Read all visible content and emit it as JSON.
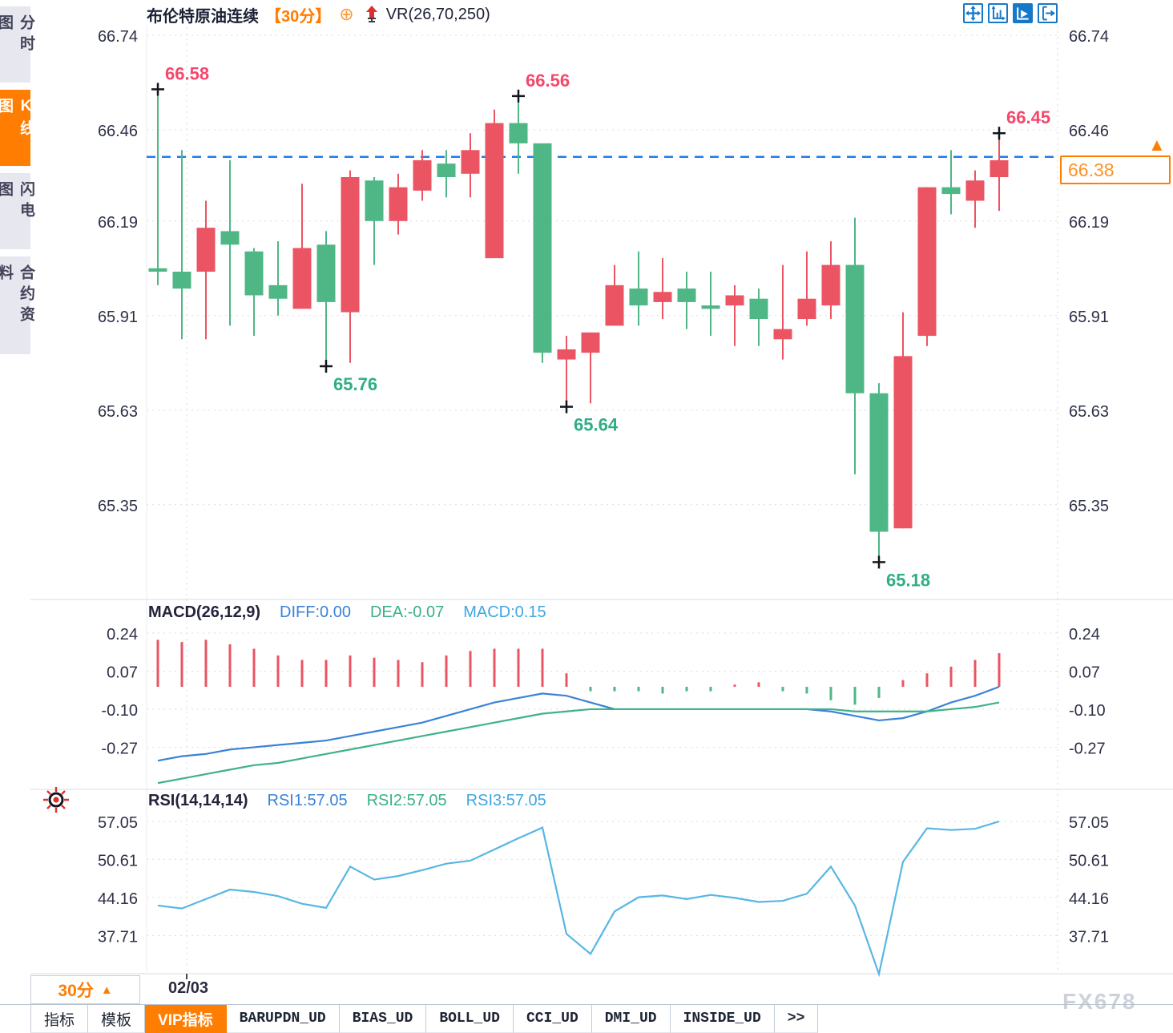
{
  "app": {
    "watermark": "FX678"
  },
  "sidebar": {
    "tabs": [
      {
        "label": "分时图",
        "active": false
      },
      {
        "label": "K线图",
        "active": true
      },
      {
        "label": "闪电图",
        "active": false
      },
      {
        "label": "合约资料",
        "active": false
      }
    ]
  },
  "header": {
    "title": "布伦特原油连续",
    "period": "【30分】",
    "target_icon": "⊕",
    "indicator_label": "VR(26,70,250)",
    "toolbar_icons": [
      "move-cross-icon",
      "axis-range-icon",
      "trend-play-icon",
      "export-right-icon"
    ]
  },
  "price_box": {
    "value": "66.38",
    "marker": "▲"
  },
  "footer": {
    "period_button": {
      "label": "30分",
      "arrow": "▲"
    },
    "date_label": "02/03",
    "tabs": [
      {
        "label": "指标",
        "active": false,
        "mono": false
      },
      {
        "label": "模板",
        "active": false,
        "mono": false
      },
      {
        "label": "VIP指标",
        "active": true,
        "mono": false
      },
      {
        "label": "BARUPDN_UD",
        "active": false,
        "mono": true
      },
      {
        "label": "BIAS_UD",
        "active": false,
        "mono": true
      },
      {
        "label": "BOLL_UD",
        "active": false,
        "mono": true
      },
      {
        "label": "CCI_UD",
        "active": false,
        "mono": true
      },
      {
        "label": "DMI_UD",
        "active": false,
        "mono": true
      },
      {
        "label": "INSIDE_UD",
        "active": false,
        "mono": true
      },
      {
        "label": ">>",
        "active": false,
        "mono": true
      }
    ]
  },
  "colors": {
    "up": "#eb5463",
    "down": "#4fb685",
    "accent": "#ff7d00",
    "price_line_blue": "#1d7dee",
    "diff_line": "#3b82d8",
    "dea_line": "#3fb287",
    "rsi_line": "#57b7e3",
    "annotation_red": "#f5476b",
    "annotation_green": "#2fae85",
    "axis_text": "#2e3148",
    "grid": "#dcdcdc",
    "toolbar_blue": "#1878c8"
  },
  "chart_data": [
    {
      "type": "candlestick",
      "panel": "price",
      "symbol": "布伦特原油连续",
      "interval": "30分",
      "y_axis_labels": [
        66.74,
        66.46,
        66.19,
        65.91,
        65.63,
        65.35
      ],
      "ylim": [
        65.05,
        66.76
      ],
      "price_line": 66.38,
      "current_price": 66.38,
      "candles": [
        [
          66.05,
          66.58,
          66.0,
          66.04
        ],
        [
          66.04,
          66.4,
          65.84,
          65.99
        ],
        [
          66.04,
          66.25,
          65.84,
          66.17
        ],
        [
          66.16,
          66.37,
          65.88,
          66.12
        ],
        [
          66.1,
          66.11,
          65.85,
          65.97
        ],
        [
          66.0,
          66.13,
          65.91,
          65.96
        ],
        [
          65.93,
          66.3,
          65.93,
          66.11
        ],
        [
          66.12,
          66.16,
          65.76,
          65.95
        ],
        [
          65.92,
          66.34,
          65.77,
          66.32
        ],
        [
          66.31,
          66.32,
          66.06,
          66.19
        ],
        [
          66.19,
          66.33,
          66.15,
          66.29
        ],
        [
          66.28,
          66.4,
          66.25,
          66.37
        ],
        [
          66.36,
          66.4,
          66.26,
          66.32
        ],
        [
          66.33,
          66.45,
          66.26,
          66.4
        ],
        [
          66.08,
          66.52,
          66.08,
          66.48
        ],
        [
          66.48,
          66.56,
          66.33,
          66.42
        ],
        [
          66.42,
          66.42,
          65.77,
          65.8
        ],
        [
          65.78,
          65.85,
          65.64,
          65.81
        ],
        [
          65.8,
          65.86,
          65.65,
          65.86
        ],
        [
          65.88,
          66.06,
          65.88,
          66.0
        ],
        [
          65.99,
          66.1,
          65.88,
          65.94
        ],
        [
          65.95,
          66.08,
          65.9,
          65.98
        ],
        [
          65.99,
          66.04,
          65.87,
          65.95
        ],
        [
          65.94,
          66.04,
          65.85,
          65.93
        ],
        [
          65.94,
          66.0,
          65.82,
          65.97
        ],
        [
          65.96,
          65.99,
          65.82,
          65.9
        ],
        [
          65.84,
          66.06,
          65.78,
          65.87
        ],
        [
          65.9,
          66.1,
          65.88,
          65.96
        ],
        [
          65.94,
          66.13,
          65.9,
          66.06
        ],
        [
          66.06,
          66.2,
          65.44,
          65.68
        ],
        [
          65.68,
          65.71,
          65.18,
          65.27
        ],
        [
          65.28,
          65.92,
          65.28,
          65.79
        ],
        [
          65.85,
          66.29,
          65.82,
          66.29
        ],
        [
          66.29,
          66.4,
          66.21,
          66.27
        ],
        [
          66.25,
          66.34,
          66.17,
          66.31
        ],
        [
          66.32,
          66.45,
          66.22,
          66.37
        ]
      ],
      "annotations": [
        {
          "idx": 1,
          "pos": "high",
          "text": "66.58"
        },
        {
          "idx": 16,
          "pos": "high",
          "text": "66.56"
        },
        {
          "idx": 36,
          "pos": "high",
          "text": "66.45"
        },
        {
          "idx": 8,
          "pos": "low",
          "text": "65.76"
        },
        {
          "idx": 18,
          "pos": "low",
          "text": "65.64"
        },
        {
          "idx": 31,
          "pos": "low",
          "text": "65.18"
        }
      ]
    },
    {
      "type": "bar",
      "panel": "macd",
      "title": "MACD(26,12,9)",
      "legend": [
        "DIFF:0.00",
        "DEA:-0.07",
        "MACD:0.15"
      ],
      "y_axis_labels": [
        0.24,
        0.07,
        -0.1,
        -0.27
      ],
      "histogram": [
        0.21,
        0.2,
        0.21,
        0.19,
        0.17,
        0.14,
        0.12,
        0.12,
        0.14,
        0.13,
        0.12,
        0.11,
        0.14,
        0.16,
        0.17,
        0.17,
        0.17,
        0.06,
        -0.02,
        -0.02,
        -0.02,
        -0.03,
        -0.02,
        -0.02,
        0.01,
        0.02,
        -0.02,
        -0.03,
        -0.06,
        -0.08,
        -0.05,
        0.03,
        0.06,
        0.09,
        0.12,
        0.15
      ],
      "series": [
        {
          "name": "DIFF",
          "values": [
            -0.33,
            -0.31,
            -0.3,
            -0.28,
            -0.27,
            -0.26,
            -0.25,
            -0.24,
            -0.22,
            -0.2,
            -0.18,
            -0.16,
            -0.13,
            -0.1,
            -0.07,
            -0.05,
            -0.03,
            -0.04,
            -0.07,
            -0.1,
            -0.1,
            -0.1,
            -0.1,
            -0.1,
            -0.1,
            -0.1,
            -0.1,
            -0.1,
            -0.11,
            -0.13,
            -0.15,
            -0.14,
            -0.11,
            -0.07,
            -0.04,
            0.0
          ]
        },
        {
          "name": "DEA",
          "values": [
            -0.43,
            -0.41,
            -0.39,
            -0.37,
            -0.35,
            -0.34,
            -0.32,
            -0.3,
            -0.28,
            -0.26,
            -0.24,
            -0.22,
            -0.2,
            -0.18,
            -0.16,
            -0.14,
            -0.12,
            -0.11,
            -0.1,
            -0.1,
            -0.1,
            -0.1,
            -0.1,
            -0.1,
            -0.1,
            -0.1,
            -0.1,
            -0.1,
            -0.1,
            -0.11,
            -0.11,
            -0.11,
            -0.11,
            -0.1,
            -0.09,
            -0.07
          ]
        }
      ]
    },
    {
      "type": "line",
      "panel": "rsi",
      "title": "RSI(14,14,14)",
      "legend": [
        "RSI1:57.05",
        "RSI2:57.05",
        "RSI3:57.05"
      ],
      "y_axis_labels": [
        57.05,
        50.61,
        44.16,
        37.71
      ],
      "x_tick_label": "02/03",
      "series": [
        {
          "name": "RSI1",
          "values": [
            42.8,
            42.3,
            43.9,
            45.5,
            45.1,
            44.4,
            43.1,
            42.4,
            49.4,
            47.2,
            47.8,
            48.8,
            49.9,
            50.4,
            52.3,
            54.2,
            56.0,
            38.0,
            34.6,
            41.8,
            44.2,
            44.5,
            43.9,
            44.6,
            44.1,
            43.4,
            43.6,
            44.8,
            49.4,
            42.8,
            31.2,
            50.2,
            55.9,
            55.6,
            55.8,
            57.05
          ]
        }
      ]
    }
  ]
}
